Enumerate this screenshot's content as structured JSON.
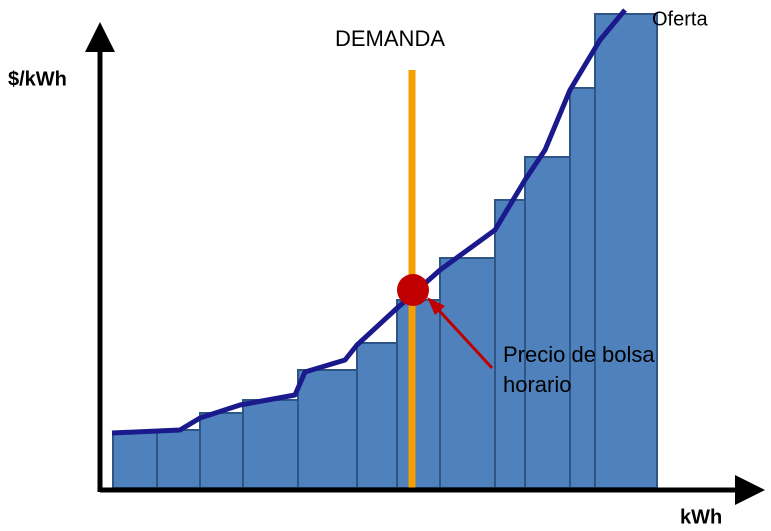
{
  "axes": {
    "y_label": "$/kWh",
    "x_label": "kWh"
  },
  "demand_label": "DEMANDA",
  "supply_label": "Oferta",
  "price_label": {
    "lines": [
      "Precio de bolsa",
      "horario"
    ]
  }
}
